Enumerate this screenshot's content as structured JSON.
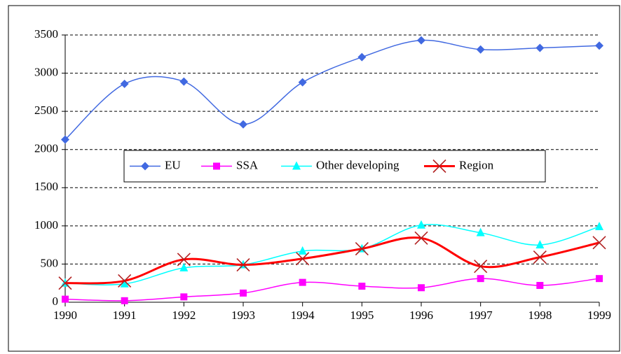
{
  "chart_data": {
    "type": "line",
    "x": [
      1990,
      1991,
      1992,
      1993,
      1994,
      1995,
      1996,
      1997,
      1998,
      1999
    ],
    "xlim": [
      1990,
      1999
    ],
    "xticks": [
      1990,
      1991,
      1992,
      1993,
      1994,
      1995,
      1996,
      1997,
      1998,
      1999
    ],
    "ylim": [
      0,
      3500
    ],
    "yticks": [
      0,
      500,
      1000,
      1500,
      2000,
      2500,
      3000,
      3500
    ],
    "grid": true,
    "legend": "center",
    "series": [
      {
        "name": "EU",
        "color": "#4169e1",
        "marker": "diamond",
        "values": [
          2130,
          2860,
          2890,
          2330,
          2880,
          3210,
          3430,
          3310,
          3330,
          3360
        ]
      },
      {
        "name": "SSA",
        "color": "#ff00ff",
        "marker": "square",
        "values": [
          40,
          20,
          70,
          120,
          260,
          210,
          190,
          310,
          220,
          310
        ]
      },
      {
        "name": "Other developing",
        "color": "#00ffff",
        "marker": "triangle",
        "values": [
          250,
          240,
          450,
          490,
          670,
          700,
          1010,
          910,
          750,
          990
        ]
      },
      {
        "name": "Region",
        "color": "#ff0000",
        "marker": "x",
        "values": [
          250,
          280,
          560,
          490,
          570,
          700,
          840,
          470,
          590,
          780
        ]
      }
    ]
  }
}
